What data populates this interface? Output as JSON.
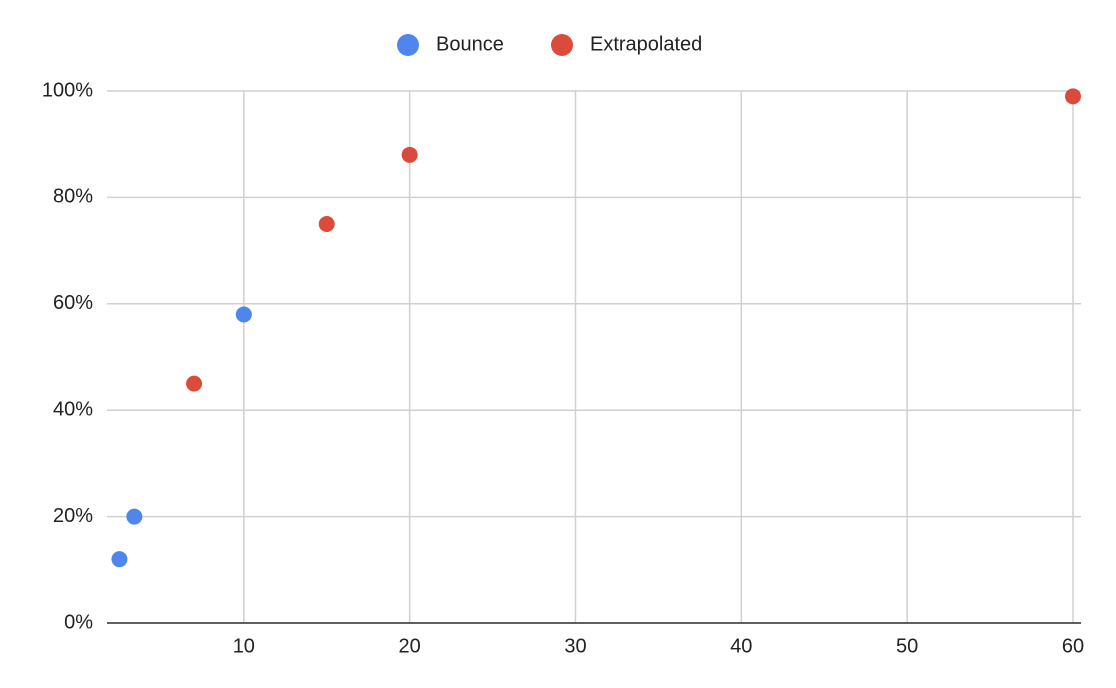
{
  "chart_data": {
    "type": "scatter",
    "series": [
      {
        "name": "Bounce",
        "color": "#4f86ec",
        "x": [
          2.5,
          3.4,
          10
        ],
        "values": [
          12,
          20,
          58
        ]
      },
      {
        "name": "Extrapolated",
        "color": "#db4b3b",
        "x": [
          7,
          15,
          20,
          60
        ],
        "values": [
          45,
          75,
          88,
          99
        ]
      }
    ],
    "xlim": [
      1.75,
      60
    ],
    "xticks": [
      10,
      20,
      30,
      40,
      50,
      60
    ],
    "ylim": [
      0,
      100
    ],
    "yticks": [
      {
        "value": 0,
        "label": "0%"
      },
      {
        "value": 20,
        "label": "20%"
      },
      {
        "value": 40,
        "label": "40%"
      },
      {
        "value": 60,
        "label": "60%"
      },
      {
        "value": 80,
        "label": "80%"
      },
      {
        "value": 100,
        "label": "100%"
      }
    ],
    "grid": true,
    "legend": "top"
  }
}
